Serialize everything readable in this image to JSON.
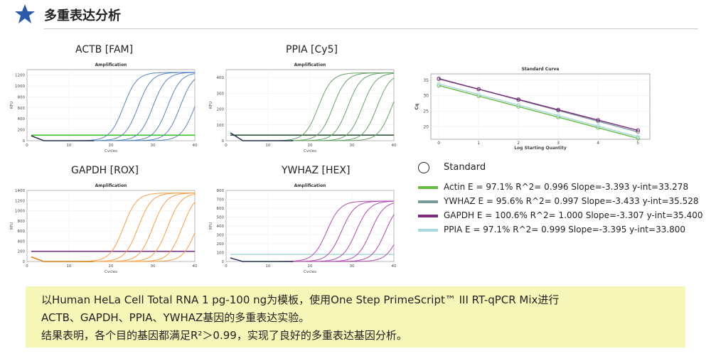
{
  "header": {
    "title": "多重表达分析",
    "icon": "star-icon",
    "icon_color": "#2a5aa8"
  },
  "charts": [
    {
      "panel_title": "ACTB  [FAM]",
      "plot_title": "Amplification",
      "xlabel": "Cycles",
      "ylabel": "RFU",
      "yticks": [
        "0",
        "200",
        "400",
        "600",
        "800",
        "1000",
        "1200"
      ],
      "xticks": [
        "0",
        "10",
        "20",
        "30",
        "40"
      ],
      "color": "#5b86c0",
      "threshold_color": "#44bb33"
    },
    {
      "panel_title": "PPIA  [Cy5]",
      "plot_title": "Amplification",
      "xlabel": "Cycles",
      "ylabel": "RFU",
      "yticks": [
        "0",
        "100",
        "200",
        "300",
        "400"
      ],
      "xticks": [
        "0",
        "10",
        "20",
        "30",
        "40"
      ],
      "color": "#6aa36a",
      "threshold_color": "#2e5a3a"
    },
    {
      "panel_title": "GAPDH  [ROX]",
      "plot_title": "Amplification",
      "xlabel": "Cycles",
      "ylabel": "RFU",
      "yticks": [
        "0",
        "200",
        "400",
        "600",
        "800",
        "1000",
        "1200",
        "1400"
      ],
      "xticks": [
        "0",
        "10",
        "20",
        "30",
        "40"
      ],
      "color": "#f5a04a",
      "threshold_color": "#7a2e8a"
    },
    {
      "panel_title": "YWHAZ  [HEX]",
      "plot_title": "Amplification",
      "xlabel": "Cycles",
      "ylabel": "RFU",
      "yticks": [
        "0",
        "100",
        "200",
        "300",
        "400",
        "500",
        "600",
        "700",
        "800"
      ],
      "xticks": [
        "0",
        "10",
        "20",
        "30",
        "40"
      ],
      "color": "#b04ab0",
      "threshold_color": "#a8d8d8"
    }
  ],
  "standard_curve": {
    "title": "Standard Curve",
    "xlabel": "Log Starting Quantity",
    "ylabel": "Cq",
    "xticks": [
      "0",
      "1",
      "2",
      "3",
      "4",
      "5"
    ],
    "yticks": [
      "20",
      "25",
      "30",
      "35"
    ]
  },
  "legend": {
    "standard_label": "Standard",
    "items": [
      {
        "text": "Actin  E = 97.1%  R^2= 0.996  Slope=-3.393  y-int=33.278",
        "color": "#66bb44"
      },
      {
        "text": "YWHAZ  E = 95.6%  R^2= 0.997  Slope=-3.433  y-int=35.528",
        "color": "#7a9a9a"
      },
      {
        "text": "GAPDH  E = 100.6%  R^2= 1.000  Slope=-3.307  y-int=35.400",
        "color": "#7a2a7a"
      },
      {
        "text": "PPIA  E = 97.1%  R^2= 0.999  Slope=-3.395  y-int=33.800",
        "color": "#a8d8dc"
      }
    ]
  },
  "note": {
    "line1": "以Human HeLa Cell Total RNA 1 pg-100 ng为模板，使用One Step PrimeScript™ III RT-qPCR Mix进行",
    "line2": "ACTB、GAPDH、PPIA、YWHAZ基因的多重表达实验。",
    "line3": "结果表明，各个目的基因都满足R²＞0.99，实现了良好的多重表达基因分析。"
  },
  "chart_data": [
    {
      "type": "line",
      "title": "Amplification",
      "xlabel": "Cycles",
      "ylabel": "RFU",
      "xlim": [
        0,
        40
      ],
      "ylim": [
        0,
        1300
      ],
      "series_shape": {
        "plateau": 1250,
        "baseline": 0,
        "initial_spike": 90,
        "threshold": 100
      },
      "curves_ct": [
        20,
        23.5,
        27,
        30.5,
        33.5,
        37
      ]
    },
    {
      "type": "line",
      "title": "Amplification",
      "xlabel": "Cycles",
      "ylabel": "RFU",
      "xlim": [
        0,
        40
      ],
      "ylim": [
        0,
        450
      ],
      "series_shape": {
        "plateau": 430,
        "baseline": 0,
        "initial_spike": 50,
        "threshold": 35
      },
      "curves_ct": [
        19,
        22.5,
        26,
        29.5,
        33,
        36.5
      ]
    },
    {
      "type": "line",
      "title": "Amplification",
      "xlabel": "Cycles",
      "ylabel": "RFU",
      "xlim": [
        0,
        40
      ],
      "ylim": [
        0,
        1400
      ],
      "series_shape": {
        "plateau": 1350,
        "baseline": 0,
        "initial_spike": 90,
        "threshold": 200
      },
      "curves_ct": [
        20,
        23.5,
        27,
        30.5,
        34,
        37.5
      ]
    },
    {
      "type": "line",
      "title": "Amplification",
      "xlabel": "Cycles",
      "ylabel": "RFU",
      "xlim": [
        0,
        40
      ],
      "ylim": [
        0,
        800
      ],
      "series_shape": {
        "plateau": 680,
        "baseline": 0,
        "initial_spike": 40,
        "threshold": 80
      },
      "curves_ct": [
        21,
        24.5,
        28,
        31.5,
        35,
        38.5
      ]
    },
    {
      "type": "scatter",
      "title": "Standard Curve",
      "xlabel": "Log Starting Quantity",
      "ylabel": "Cq",
      "xlim": [
        -0.2,
        5.3
      ],
      "ylim": [
        16,
        37
      ],
      "x": [
        0,
        1,
        2,
        3,
        4,
        5
      ],
      "series": [
        {
          "name": "Actin",
          "slope": -3.393,
          "intercept": 33.278,
          "color": "#66bb44"
        },
        {
          "name": "YWHAZ",
          "slope": -3.433,
          "intercept": 35.528,
          "color": "#7a9a9a"
        },
        {
          "name": "GAPDH",
          "slope": -3.307,
          "intercept": 35.4,
          "color": "#7a2a7a"
        },
        {
          "name": "PPIA",
          "slope": -3.395,
          "intercept": 33.8,
          "color": "#a8d8dc"
        }
      ]
    }
  ]
}
